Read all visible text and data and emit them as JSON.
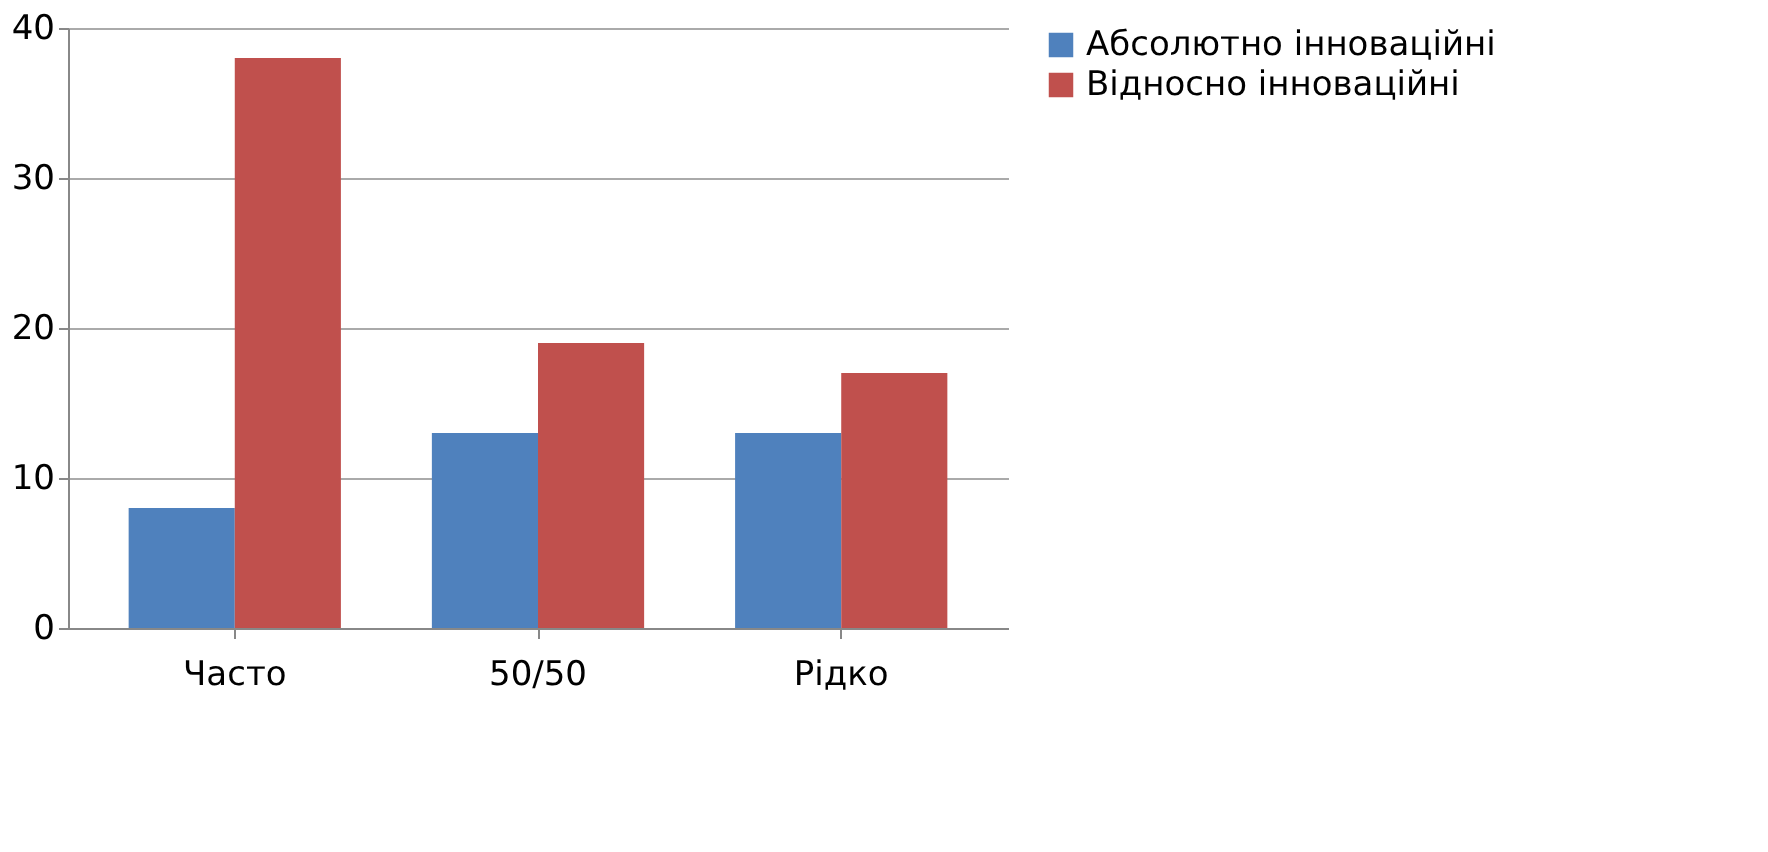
{
  "chart_data": {
    "type": "bar",
    "categories": [
      "Часто",
      "50/50",
      "Рідко"
    ],
    "series": [
      {
        "name": "Абсолютно інноваційні",
        "color": "#4f81bd",
        "values": [
          8,
          13,
          13
        ]
      },
      {
        "name": "Відносно інноваційні",
        "color": "#c0504d",
        "values": [
          38,
          19,
          17
        ]
      }
    ],
    "ylim": [
      0,
      40
    ],
    "yticks": [
      0,
      10,
      20,
      30,
      40
    ],
    "grid": "y",
    "legend": "right"
  }
}
